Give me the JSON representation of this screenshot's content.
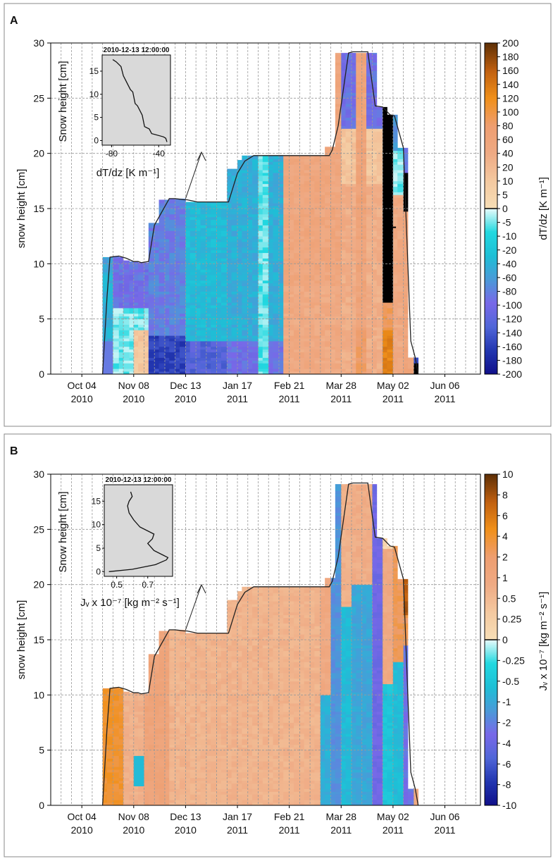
{
  "chart_data": [
    {
      "panel": "A",
      "type": "heatmap",
      "ylabel": "snow height [cm]",
      "ylim": [
        0,
        30
      ],
      "yticks": [
        "0",
        "5",
        "10",
        "15",
        "20",
        "25",
        "30"
      ],
      "xtick_labels": [
        {
          "day": 21,
          "top": "Oct 04",
          "bottom": "2010"
        },
        {
          "day": 56,
          "top": "Nov 08",
          "bottom": "2010"
        },
        {
          "day": 91,
          "top": "Dec 13",
          "bottom": "2010"
        },
        {
          "day": 126,
          "top": "Jan 17",
          "bottom": "2011"
        },
        {
          "day": 161,
          "top": "Feb 21",
          "bottom": "2011"
        },
        {
          "day": 196,
          "top": "Mar 28",
          "bottom": "2011"
        },
        {
          "day": 231,
          "top": "May 02",
          "bottom": "2011"
        },
        {
          "day": 266,
          "top": "Jun 06",
          "bottom": "2011"
        }
      ],
      "snow_height_outline": {
        "day": [
          35,
          38,
          40,
          46,
          51,
          56,
          59,
          61,
          66,
          70,
          80,
          84,
          90,
          92,
          99,
          105,
          110,
          120,
          126,
          131,
          137,
          142,
          148,
          153,
          158,
          164,
          188,
          190,
          194,
          201,
          204,
          208,
          214,
          219,
          224,
          229,
          232,
          238,
          243,
          246,
          248
        ],
        "height": [
          0,
          7,
          10.6,
          10.7,
          10.5,
          10.2,
          10.2,
          10.1,
          10.2,
          13.5,
          15.9,
          15.9,
          15.8,
          15.8,
          15.6,
          15.6,
          15.6,
          15.6,
          18.2,
          19.3,
          19.8,
          19.8,
          19.8,
          19.8,
          19.8,
          19.8,
          19.8,
          20.3,
          22.5,
          29.1,
          29.2,
          29.2,
          29.2,
          24.3,
          24.2,
          23.5,
          23.4,
          20.5,
          3,
          1.5,
          0
        ]
      },
      "columns": {
        "day_start": [
          35,
          38,
          42,
          46,
          49,
          53,
          56,
          59,
          63,
          66,
          70,
          73,
          77,
          80,
          84,
          87,
          91,
          94,
          98,
          101,
          105,
          108,
          112,
          115,
          119,
          122,
          126,
          129,
          133,
          136,
          140,
          143,
          147,
          150,
          154,
          157,
          161,
          164,
          168,
          171,
          175,
          178,
          182,
          185,
          189,
          192,
          196,
          199,
          203,
          206,
          210,
          213,
          217,
          220,
          224,
          227,
          231,
          234,
          238,
          241,
          245
        ],
        "top_height": [
          10.6,
          10.6,
          10.7,
          10.6,
          10.3,
          10.2,
          10.2,
          10.1,
          10.1,
          13.7,
          13.7,
          15.8,
          15.8,
          15.9,
          15.9,
          15.9,
          15.6,
          15.6,
          15.6,
          15.6,
          15.6,
          15.6,
          15.6,
          15.6,
          18.6,
          18.6,
          19.4,
          19.8,
          19.8,
          19.8,
          19.8,
          19.8,
          19.8,
          19.8,
          19.8,
          19.8,
          19.8,
          19.8,
          19.8,
          19.8,
          19.8,
          19.8,
          19.8,
          20.6,
          20.6,
          29.1,
          29.1,
          29.1,
          29.1,
          29.1,
          29.1,
          29.1,
          29.1,
          24.2,
          24.2,
          23.5,
          23.5,
          20.5,
          20.5,
          1.5,
          1.5
        ]
      },
      "colorbar": {
        "label": "dT/dz [K m⁻¹]",
        "tick_labels": [
          "200",
          "180",
          "160",
          "140",
          "120",
          "100",
          "80",
          "60",
          "40",
          "20",
          "10",
          "5",
          "0",
          "-5",
          "-10",
          "-20",
          "-40",
          "-60",
          "-80",
          "-100",
          "-120",
          "-140",
          "-160",
          "-180",
          "-200"
        ],
        "ramp_positive": [
          "#f7dfb7",
          "#f4c9a0",
          "#efaa84",
          "#ee9e70",
          "#f0901a",
          "#c06010",
          "#5e2f06"
        ],
        "ramp_negative": [
          "#e8fbfb",
          "#22d8e0",
          "#1ebfd6",
          "#4a9ad8",
          "#7868e8",
          "#5066d8",
          "#2236b0",
          "#10108a"
        ]
      },
      "inset": {
        "title": "2010-12-13 12:00:00",
        "ylabel": "Snow height [cm]",
        "xlabel": "dT/dz [K m⁻¹]",
        "xtick_labels": [
          "-80",
          "-40"
        ],
        "ytick_labels": [
          "0",
          "5",
          "10",
          "15"
        ],
        "profile_value": [
          -33,
          -34,
          -36,
          -46,
          -48,
          -52,
          -54,
          -58,
          -60,
          -62,
          -64,
          -66,
          -68,
          -70,
          -71,
          -72,
          -76,
          -79
        ],
        "profile_height": [
          -0.3,
          0.5,
          0.8,
          1.5,
          2.5,
          3,
          5.5,
          7.5,
          8,
          10.5,
          11,
          12,
          13,
          14,
          15,
          16,
          17,
          17.5
        ]
      }
    },
    {
      "panel": "B",
      "type": "heatmap",
      "ylabel": "snow height [cm]",
      "ylim": [
        0,
        30
      ],
      "yticks": [
        "0",
        "5",
        "10",
        "15",
        "20",
        "25",
        "30"
      ],
      "colorbar": {
        "label": "Jᵥ x 10⁻⁷ [kg m⁻² s⁻¹]",
        "tick_labels": [
          "10",
          "8",
          "6",
          "4",
          "2",
          "1",
          "0.5",
          "0.25",
          "0",
          "-0.25",
          "-0.5",
          "-1",
          "-2",
          "-4",
          "-6",
          "-8",
          "-10"
        ],
        "ramp_positive": [
          "#f7dfb7",
          "#f4c9a0",
          "#efaa84",
          "#ee9e70",
          "#f0901a",
          "#c06010",
          "#5e2f06"
        ],
        "ramp_negative": [
          "#e8fbfb",
          "#22d8e0",
          "#1ebfd6",
          "#4a9ad8",
          "#7868e8",
          "#5066d8",
          "#2236b0",
          "#10108a"
        ]
      },
      "inset": {
        "title": "2010-12-13 12:00:00",
        "ylabel": "Snow height [cm]",
        "xlabel": "Jᵥ x 10⁻⁷ [kg m⁻² s⁻¹]",
        "xtick_labels": [
          "0.5",
          "0.7"
        ],
        "ytick_labels": [
          "0",
          "5",
          "10",
          "15"
        ],
        "profile_value": [
          0.45,
          0.6,
          0.75,
          0.82,
          0.83,
          0.8,
          0.74,
          0.7,
          0.73,
          0.74,
          0.65,
          0.61,
          0.58,
          0.57,
          0.58,
          0.6,
          0.59
        ],
        "profile_height": [
          0,
          0.5,
          1.5,
          2.5,
          3,
          3.5,
          4.5,
          6,
          7,
          8,
          9.5,
          11,
          12.5,
          14,
          15,
          16,
          17
        ]
      }
    }
  ]
}
